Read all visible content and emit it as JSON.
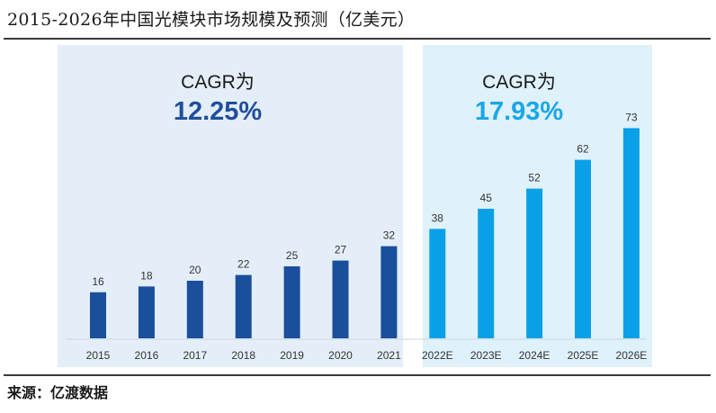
{
  "page": {
    "title": "2015-2026年中国光模块市场规模及预测（亿美元）",
    "source": "来源：亿渡数据"
  },
  "colors": {
    "historical_bar": "#1a4f9c",
    "forecast_bar": "#0aa0e8",
    "historical_panel": "#e4eef8",
    "forecast_panel": "#dff1fb",
    "historical_cagr_text": "#1f4e9c",
    "forecast_cagr_text": "#1aa6e8"
  },
  "annotations": {
    "historical": {
      "label": "CAGR为",
      "value": "12.25%"
    },
    "forecast": {
      "label": "CAGR为",
      "value": "17.93%"
    }
  },
  "chart_data": {
    "type": "bar",
    "title": "2015-2026年中国光模块市场规模及预测（亿美元）",
    "xlabel": "",
    "ylabel": "",
    "ylim": [
      0,
      80
    ],
    "grid": false,
    "categories": [
      "2015",
      "2016",
      "2017",
      "2018",
      "2019",
      "2020",
      "2021",
      "2022E",
      "2023E",
      "2024E",
      "2025E",
      "2026E"
    ],
    "values": [
      16,
      18,
      20,
      22,
      25,
      27,
      32,
      38,
      45,
      52,
      62,
      73
    ],
    "forecast_flags": [
      false,
      false,
      false,
      false,
      false,
      false,
      false,
      true,
      true,
      true,
      true,
      true
    ]
  }
}
